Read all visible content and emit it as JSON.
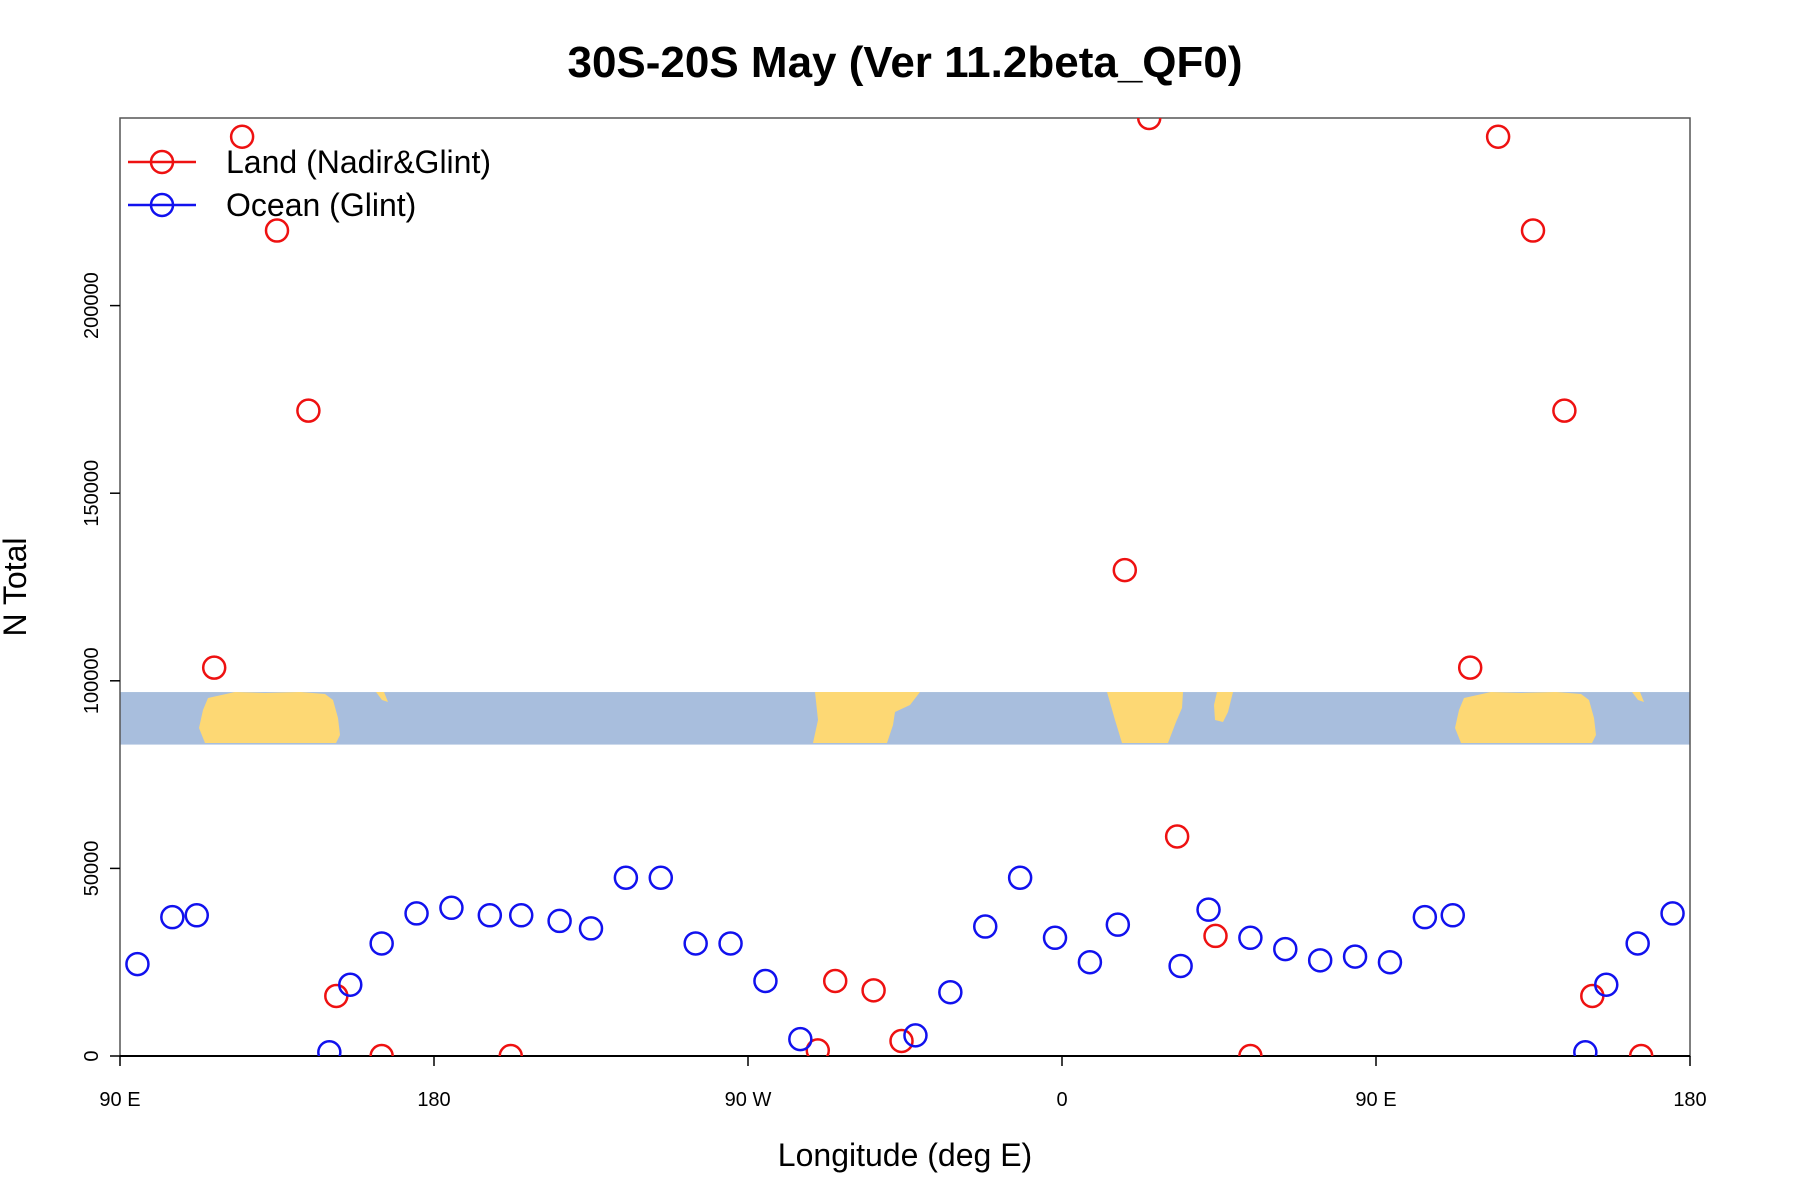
{
  "chart_data": {
    "type": "scatter",
    "title": "30S-20S May (Ver 11.2beta_QF0)",
    "xlabel": "Longitude (deg E)",
    "ylabel": "N Total",
    "xlim": [
      90,
      540
    ],
    "ylim": [
      0,
      250000
    ],
    "x_ticks": [
      {
        "value": 90,
        "label": "90 E"
      },
      {
        "value": 180,
        "label": "180"
      },
      {
        "value": 270,
        "label": "90 W"
      },
      {
        "value": 360,
        "label": "0"
      },
      {
        "value": 450,
        "label": "90 E"
      },
      {
        "value": 540,
        "label": "180"
      }
    ],
    "y_ticks": [
      {
        "value": 0,
        "label": "0"
      },
      {
        "value": 50000,
        "label": "50000"
      },
      {
        "value": 100000,
        "label": "100000"
      },
      {
        "value": 150000,
        "label": "150000"
      },
      {
        "value": 200000,
        "label": "200000"
      }
    ],
    "grid": false,
    "legend_position": "top-left",
    "map_strip": {
      "y_range": [
        83000,
        97000
      ],
      "ocean_color": "#a8bedd",
      "land_color": "#fdd874"
    },
    "series": [
      {
        "name": "Land (Nadir&Glint)",
        "color": "#ee1111",
        "points": [
          [
            117,
            103500
          ],
          [
            125,
            245000
          ],
          [
            135,
            220000
          ],
          [
            144,
            172000
          ],
          [
            152,
            16000
          ],
          [
            165,
            0
          ],
          [
            202,
            0
          ],
          [
            290,
            1500
          ],
          [
            295,
            20000
          ],
          [
            306,
            17500
          ],
          [
            314,
            4000
          ],
          [
            378,
            129500
          ],
          [
            385,
            250000
          ],
          [
            393,
            58500
          ],
          [
            404,
            32000
          ],
          [
            414,
            0
          ],
          [
            477,
            103500
          ],
          [
            485,
            245000
          ],
          [
            495,
            220000
          ],
          [
            504,
            172000
          ],
          [
            512,
            16000
          ],
          [
            526,
            0
          ]
        ]
      },
      {
        "name": "Ocean (Glint)",
        "color": "#1111ee",
        "points": [
          [
            95,
            24500
          ],
          [
            105,
            37000
          ],
          [
            112,
            37500
          ],
          [
            150,
            1000
          ],
          [
            156,
            19000
          ],
          [
            165,
            30000
          ],
          [
            175,
            38000
          ],
          [
            185,
            39500
          ],
          [
            196,
            37500
          ],
          [
            205,
            37500
          ],
          [
            216,
            36000
          ],
          [
            225,
            34000
          ],
          [
            235,
            47500
          ],
          [
            245,
            47500
          ],
          [
            255,
            30000
          ],
          [
            265,
            30000
          ],
          [
            275,
            20000
          ],
          [
            285,
            4500
          ],
          [
            318,
            5500
          ],
          [
            328,
            17000
          ],
          [
            338,
            34500
          ],
          [
            348,
            47500
          ],
          [
            358,
            31500
          ],
          [
            368,
            25000
          ],
          [
            376,
            35000
          ],
          [
            394,
            24000
          ],
          [
            402,
            39000
          ],
          [
            414,
            31500
          ],
          [
            424,
            28500
          ],
          [
            434,
            25500
          ],
          [
            444,
            26500
          ],
          [
            454,
            25000
          ],
          [
            464,
            37000
          ],
          [
            472,
            37500
          ],
          [
            510,
            1000
          ],
          [
            516,
            19000
          ],
          [
            525,
            30000
          ],
          [
            535,
            38000
          ]
        ]
      }
    ]
  }
}
